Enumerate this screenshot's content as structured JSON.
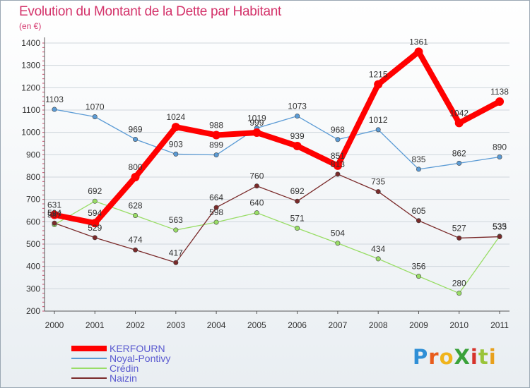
{
  "header": {
    "title": "Evolution du Montant de la Dette par Habitant",
    "subtitle": "(en €)"
  },
  "logo": {
    "text": "ProXiti",
    "letter_colors": [
      "#2f8fd6",
      "#e85c1c",
      "#f0b41c",
      "#3aa23a",
      "#d6332b",
      "#9ac43a",
      "#e8a01c"
    ]
  },
  "chart_data": {
    "type": "line",
    "title": "Evolution du Montant de la Dette par Habitant",
    "subtitle": "(en €)",
    "xlabel": "",
    "ylabel": "",
    "x": [
      "2000",
      "2001",
      "2002",
      "2003",
      "2004",
      "2005",
      "2006",
      "2007",
      "2008",
      "2009",
      "2010",
      "2011"
    ],
    "ylim": [
      200,
      1400
    ],
    "yticks": [
      200,
      300,
      400,
      500,
      600,
      700,
      800,
      900,
      1000,
      1100,
      1200,
      1300,
      1400
    ],
    "grid": "horizontal",
    "legend": "bottom-left",
    "series": [
      {
        "name": "KERFOURN",
        "color": "#ff0000",
        "values": [
          631,
          594,
          800,
          1024,
          988,
          999,
          939,
          851,
          1215,
          1361,
          1042,
          1138
        ]
      },
      {
        "name": "Noyal-Pontivy",
        "color": "#5b9bd5",
        "values": [
          1103,
          1070,
          969,
          903,
          899,
          1019,
          1073,
          968,
          1012,
          835,
          862,
          890
        ]
      },
      {
        "name": "Crédin",
        "color": "#99dd66",
        "values": [
          587,
          692,
          628,
          563,
          598,
          640,
          571,
          504,
          434,
          356,
          280,
          535
        ]
      },
      {
        "name": "Naizin",
        "color": "#7a2a2a",
        "values": [
          594,
          529,
          474,
          417,
          664,
          760,
          692,
          813,
          735,
          605,
          527,
          533
        ]
      }
    ]
  }
}
